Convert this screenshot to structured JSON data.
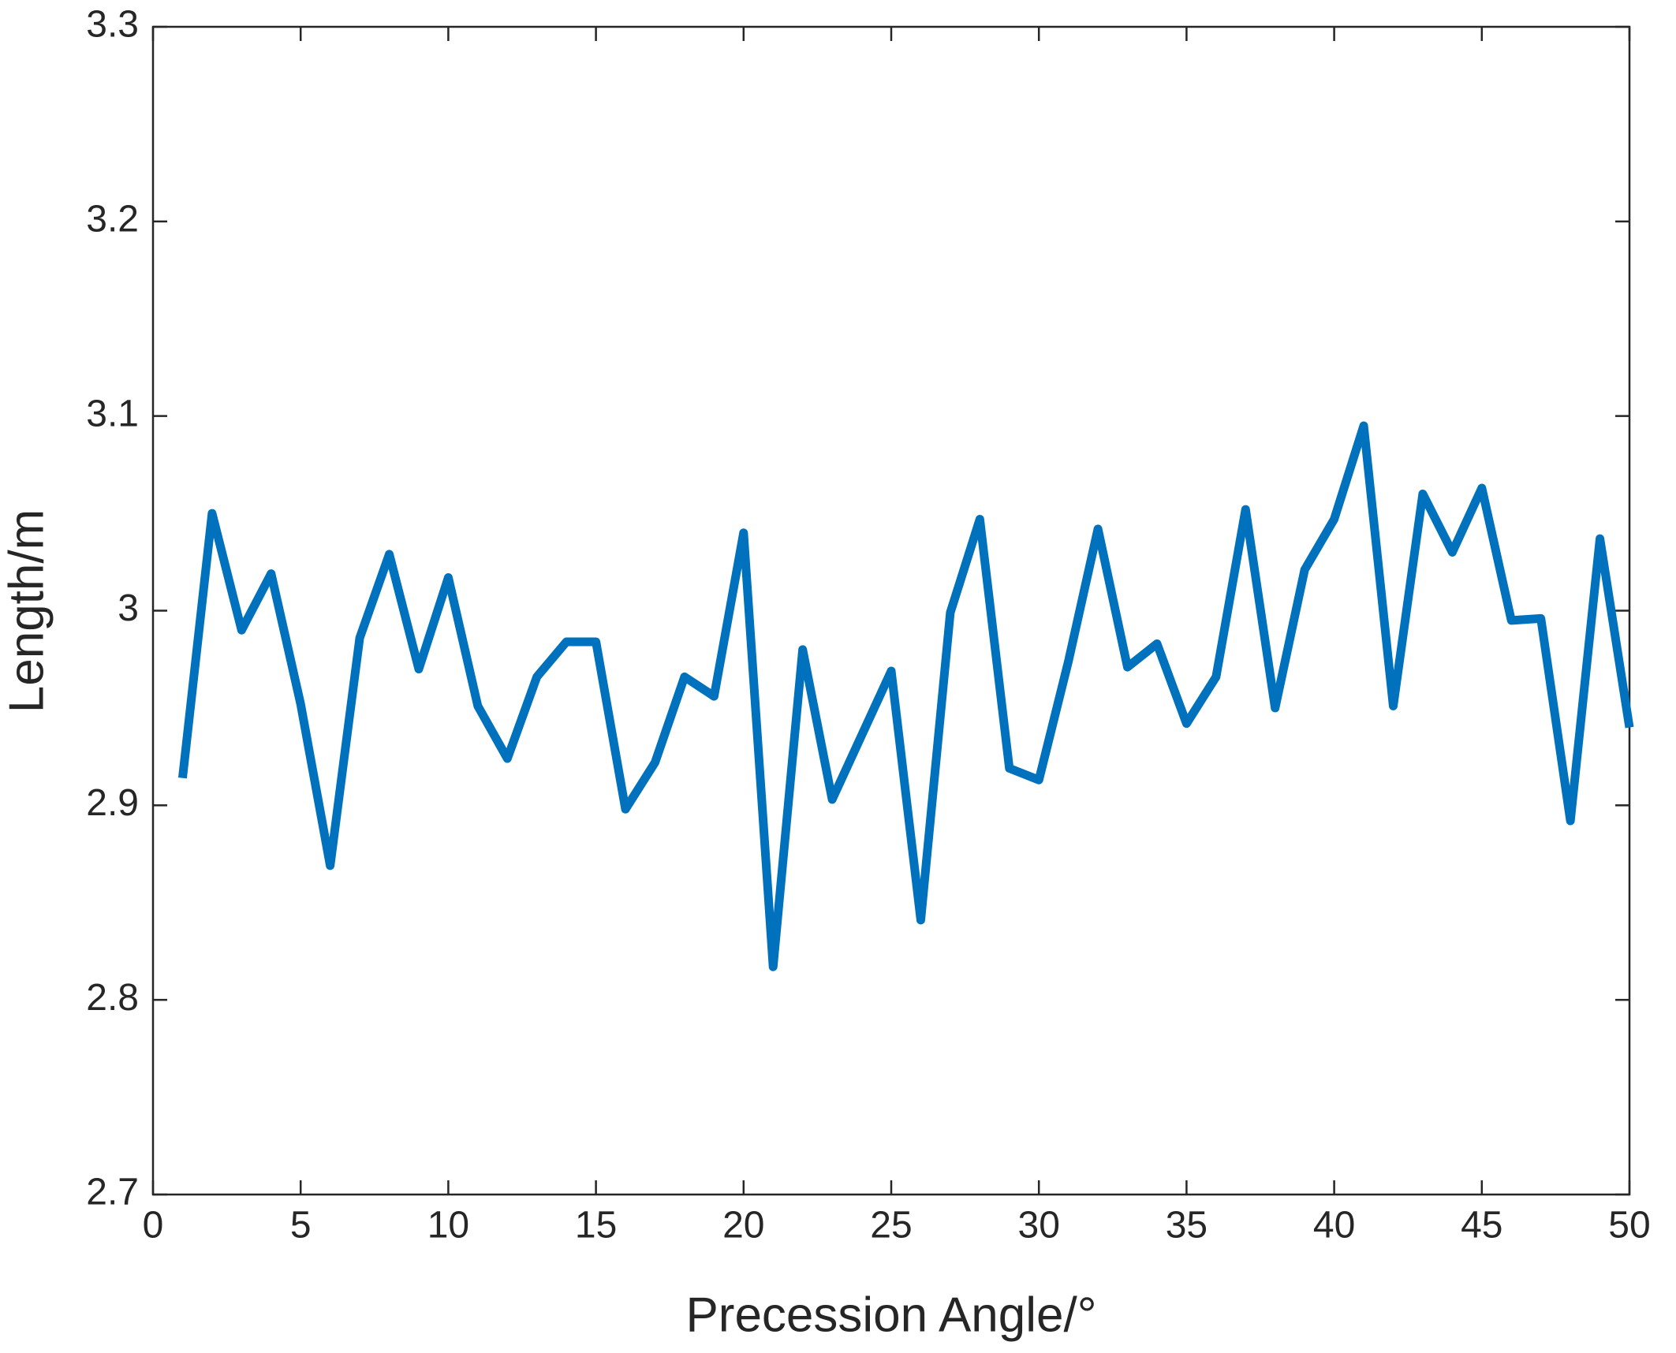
{
  "chart_data": {
    "type": "line",
    "xlabel": "Precession Angle/°",
    "ylabel": "Length/m",
    "x": [
      1,
      2,
      3,
      4,
      5,
      6,
      7,
      8,
      9,
      10,
      11,
      12,
      13,
      14,
      15,
      16,
      17,
      18,
      19,
      20,
      21,
      22,
      23,
      24,
      25,
      26,
      27,
      28,
      29,
      30,
      31,
      32,
      33,
      34,
      35,
      36,
      37,
      38,
      39,
      40,
      41,
      42,
      43,
      44,
      45,
      46,
      47,
      48,
      49,
      50
    ],
    "series": [
      {
        "color": "#0072bd",
        "values": [
          2.914,
          3.05,
          2.99,
          3.019,
          2.952,
          2.869,
          2.986,
          3.029,
          2.97,
          3.017,
          2.951,
          2.924,
          2.966,
          2.984,
          2.984,
          2.898,
          2.922,
          2.966,
          2.956,
          3.04,
          2.817,
          2.98,
          2.903,
          2.936,
          2.969,
          2.841,
          2.999,
          3.047,
          2.919,
          2.913,
          2.974,
          3.042,
          2.971,
          2.983,
          2.942,
          2.966,
          3.052,
          2.95,
          3.021,
          3.047,
          3.095,
          2.951,
          3.06,
          3.03,
          3.063,
          2.995,
          2.996,
          2.892,
          3.037,
          2.94
        ]
      }
    ],
    "xlim": [
      0,
      50
    ],
    "xticks": [
      0,
      5,
      10,
      15,
      20,
      25,
      30,
      35,
      40,
      45,
      50
    ],
    "ylim": [
      2.7,
      3.3
    ],
    "yticks": [
      2.7,
      2.8,
      2.9,
      3,
      3.1,
      3.2,
      3.3
    ],
    "grid": false
  }
}
